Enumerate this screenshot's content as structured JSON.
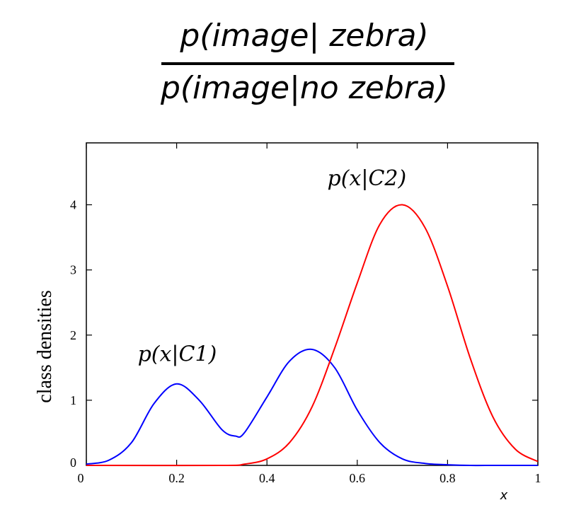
{
  "formula": {
    "numerator": "p(image| zebra)",
    "denominator": "p(image|no zebra)"
  },
  "chart_data": {
    "type": "line",
    "title": "",
    "xlabel": "x",
    "ylabel": "class densities",
    "xlim": [
      0,
      1
    ],
    "ylim": [
      0,
      5
    ],
    "x_ticks": [
      0,
      0.2,
      0.4,
      0.6,
      0.8,
      1
    ],
    "x_tick_labels": [
      "0",
      "0.2",
      "0.4",
      "0.6",
      "0.8",
      "1"
    ],
    "y_ticks": [
      0,
      1,
      2,
      3,
      4
    ],
    "y_tick_labels": [
      "0",
      "1",
      "2",
      "3",
      "4"
    ],
    "series": [
      {
        "name": "p(x|C1)",
        "color": "#0000ff",
        "x": [
          0,
          0.05,
          0.1,
          0.15,
          0.2,
          0.25,
          0.3,
          0.33,
          0.35,
          0.4,
          0.45,
          0.5,
          0.55,
          0.6,
          0.65,
          0.7,
          0.75,
          0.8,
          0.85,
          0.9,
          0.95,
          1
        ],
        "y": [
          0.02,
          0.08,
          0.35,
          0.95,
          1.25,
          1.0,
          0.55,
          0.45,
          0.5,
          1.05,
          1.6,
          1.78,
          1.5,
          0.85,
          0.35,
          0.1,
          0.03,
          0.01,
          0.0,
          0.0,
          0.0,
          0.0
        ]
      },
      {
        "name": "p(x|C2)",
        "color": "#ff0000",
        "x": [
          0,
          0.3,
          0.35,
          0.4,
          0.45,
          0.5,
          0.55,
          0.6,
          0.65,
          0.7,
          0.75,
          0.8,
          0.85,
          0.9,
          0.95,
          1
        ],
        "y": [
          0,
          0.0,
          0.02,
          0.1,
          0.35,
          0.9,
          1.8,
          2.8,
          3.7,
          4.0,
          3.65,
          2.75,
          1.65,
          0.75,
          0.25,
          0.06
        ]
      }
    ],
    "annotations": [
      {
        "text": "p(x|C1)",
        "x": 0.2,
        "y": 1.6
      },
      {
        "text": "p(x|C2)",
        "x": 0.62,
        "y": 4.3
      }
    ]
  }
}
